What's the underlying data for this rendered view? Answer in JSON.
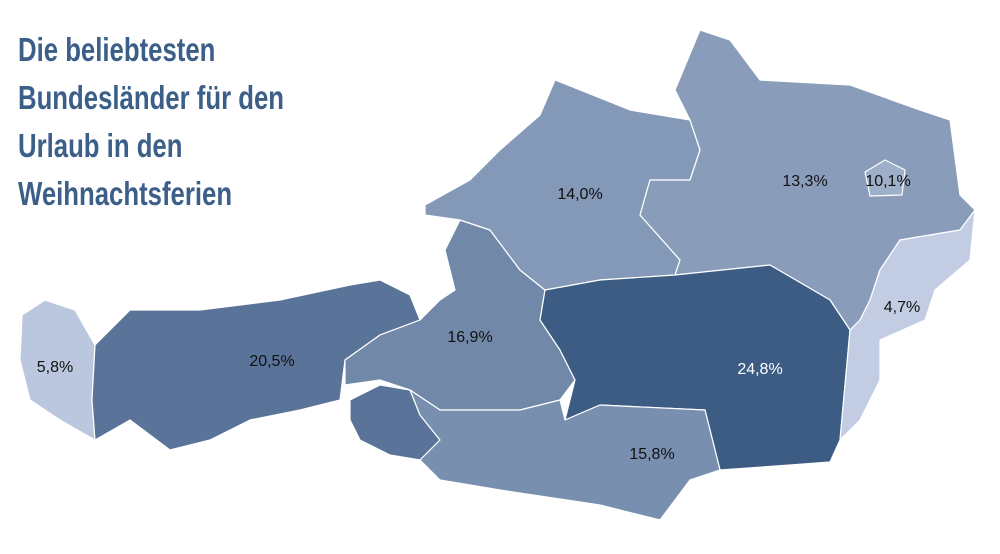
{
  "chart_data": {
    "type": "map",
    "title": [
      "Die beliebtesten",
      "Bundesländer für den",
      "Urlaub in den",
      "Weihnachtsferien"
    ],
    "values": [
      5.8,
      20.5,
      16.9,
      14.0,
      13.3,
      10.1,
      4.7,
      24.8,
      15.8
    ],
    "value_labels": [
      "5,8%",
      "20,5%",
      "16,9%",
      "14,0%",
      "13,3%",
      "10,1%",
      "4,7%",
      "24,8%",
      "15,8%"
    ],
    "color": [
      "#c2cde3",
      "#3c5c84"
    ]
  }
}
